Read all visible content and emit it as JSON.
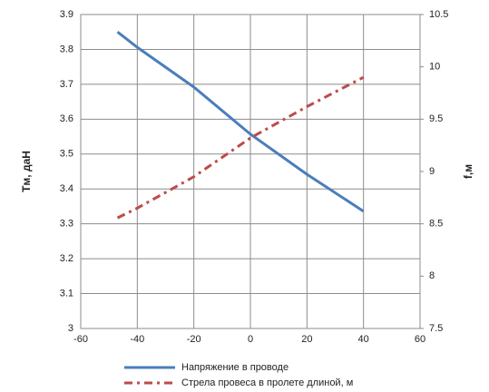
{
  "chart_data": {
    "type": "line",
    "x": [
      -47,
      -40,
      -20,
      0,
      20,
      40
    ],
    "xlim": [
      -60,
      60
    ],
    "xticks": [
      -60,
      -40,
      -20,
      0,
      20,
      40,
      60
    ],
    "ylim": [
      3,
      3.9
    ],
    "yticks": [
      3,
      3.1,
      3.2,
      3.3,
      3.4,
      3.5,
      3.6,
      3.7,
      3.8,
      3.9
    ],
    "y2lim": [
      7.5,
      10.5
    ],
    "y2ticks": [
      7.5,
      8,
      8.5,
      9,
      9.5,
      10,
      10.5
    ],
    "ylabel": "Tм, даН",
    "y2label": "f,м",
    "grid": true,
    "series": [
      {
        "name": "Напряжение в проводе",
        "color": "#4a7ebb",
        "values": [
          3.85,
          3.806,
          3.692,
          3.557,
          3.442,
          3.336
        ]
      },
      {
        "name": "Стрела провеса в пролете длиной, м",
        "color": "#be4b48",
        "axis": "y2",
        "values": [
          8.557,
          8.65,
          8.95,
          9.32,
          9.62,
          9.9
        ]
      }
    ]
  }
}
